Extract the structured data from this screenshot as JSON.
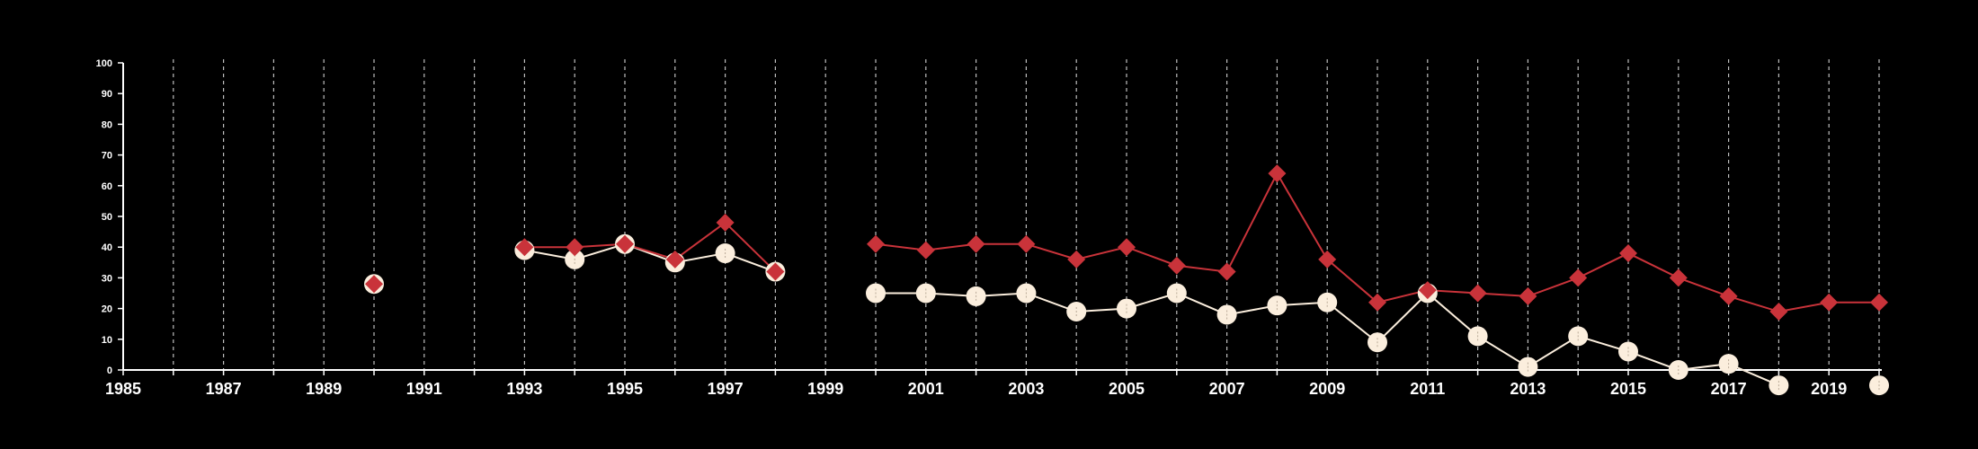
{
  "chart_data": {
    "type": "line",
    "title": "",
    "xlabel": "",
    "ylabel": "",
    "xlim": [
      1985,
      2020
    ],
    "ylim": [
      0,
      100
    ],
    "x_ticks": [
      1985,
      1987,
      1989,
      1991,
      1993,
      1995,
      1997,
      1999,
      2001,
      2003,
      2005,
      2007,
      2009,
      2011,
      2013,
      2015,
      2017,
      2019
    ],
    "x_tick_labels": [
      "1985",
      "1987",
      "1989",
      "1991",
      "1993",
      "1995",
      "1997",
      "1999",
      "2001",
      "2003",
      "2005",
      "2007",
      "2009",
      "2011",
      "2013",
      "2015",
      "2017",
      "2019"
    ],
    "y_ticks": [
      0,
      10,
      20,
      30,
      40,
      50,
      60,
      70,
      80,
      90,
      100
    ],
    "y_tick_labels": [
      "0",
      "10",
      "20",
      "30",
      "40",
      "50",
      "60",
      "70",
      "80",
      "90",
      "100"
    ],
    "grid": "vertical dashed lines at every year",
    "legend": "none",
    "colors": {
      "background": "#000000",
      "axis": "#ffffff",
      "grid": "#bfbfbf",
      "red_series": "#c9333a",
      "cream_series": "#fbeedd"
    },
    "series": [
      {
        "marker": "diamond",
        "color": "#c9333a",
        "x": [
          1990,
          1993,
          1994,
          1995,
          1996,
          1997,
          1998,
          2000,
          2001,
          2002,
          2003,
          2004,
          2005,
          2006,
          2007,
          2008,
          2009,
          2010,
          2011,
          2012,
          2013,
          2014,
          2015,
          2016,
          2017,
          2018,
          2019,
          2020
        ],
        "y": [
          28,
          40,
          40,
          41,
          36,
          48,
          32,
          41,
          39,
          41,
          41,
          36,
          40,
          34,
          32,
          64,
          36,
          22,
          26,
          25,
          24,
          30,
          38,
          30,
          24,
          19,
          22,
          22
        ]
      },
      {
        "marker": "circle",
        "color": "#fbeedd",
        "x": [
          1990,
          1993,
          1994,
          1995,
          1996,
          1997,
          1998,
          2000,
          2001,
          2002,
          2003,
          2004,
          2005,
          2006,
          2007,
          2008,
          2009,
          2010,
          2011,
          2012,
          2013,
          2014,
          2015,
          2016,
          2017,
          2018,
          2020
        ],
        "y": [
          28,
          39,
          36,
          41,
          35,
          38,
          32,
          25,
          25,
          24,
          25,
          19,
          20,
          25,
          18,
          21,
          22,
          9,
          25,
          11,
          1,
          11,
          6,
          0,
          2,
          -5,
          -5
        ]
      }
    ]
  }
}
